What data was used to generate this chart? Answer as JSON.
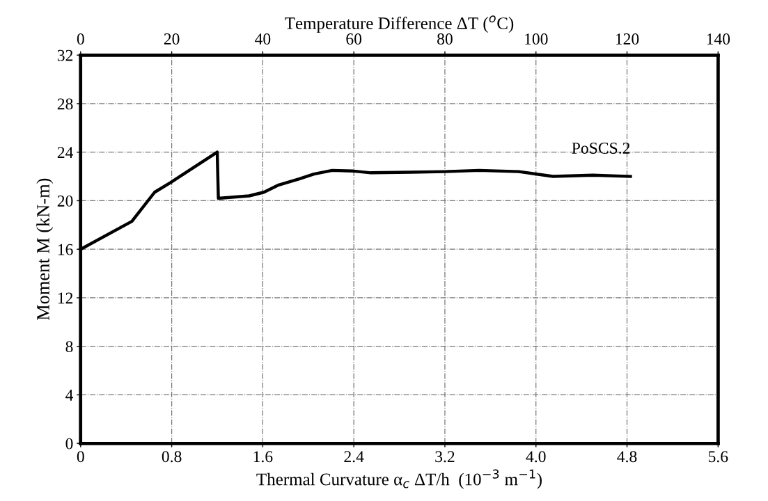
{
  "chart_data": {
    "type": "line",
    "xlabel": "Thermal Curvature α$_{c}$ ΔT/h  (10$^{−3}$ m$^{−1}$)",
    "x2label": "Temperature Difference ΔT ($^{o}$C)",
    "ylabel": "Moment M (kN-m)",
    "xlim": [
      0,
      5.6
    ],
    "xticks": [
      0,
      0.8,
      1.6,
      2.4,
      3.2,
      {
        "value": 4,
        "label": "4.0"
      },
      4.8,
      5.6
    ],
    "x2lim": [
      0,
      140
    ],
    "x2ticks": [
      0,
      20,
      40,
      60,
      80,
      100,
      120,
      140
    ],
    "ylim": [
      0,
      32
    ],
    "yticks": [
      0,
      4,
      8,
      12,
      16,
      20,
      24,
      28,
      32
    ],
    "grid": true,
    "legend": false,
    "marker": "none",
    "line_style": "solid",
    "series": [
      {
        "name": "PoSCS.2",
        "color": "#000000",
        "x": [
          0,
          0.45,
          0.65,
          0.79,
          1.2,
          1.21,
          1.48,
          1.61,
          1.74,
          1.92,
          2.05,
          2.21,
          2.39,
          2.55,
          2.9,
          3.2,
          3.5,
          3.85,
          4.15,
          4.5,
          4.83
        ],
        "values": [
          16.0,
          18.3,
          20.7,
          21.5,
          24.0,
          20.2,
          20.4,
          20.7,
          21.3,
          21.8,
          22.2,
          22.5,
          22.45,
          22.3,
          22.35,
          22.4,
          22.5,
          22.4,
          22.0,
          22.1,
          22.0
        ]
      }
    ]
  }
}
